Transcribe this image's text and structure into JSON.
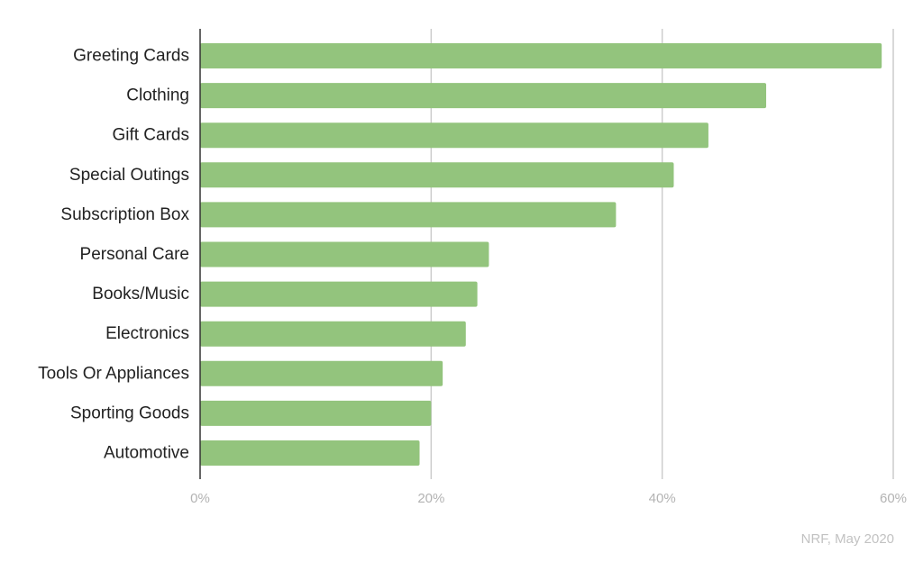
{
  "chart_data": {
    "type": "bar",
    "orientation": "horizontal",
    "categories": [
      "Greeting Cards",
      "Clothing",
      "Gift Cards",
      "Special Outings",
      "Subscription Box",
      "Personal Care",
      "Books/Music",
      "Electronics",
      "Tools Or Appliances",
      "Sporting Goods",
      "Automotive"
    ],
    "values": [
      59,
      49,
      44,
      41,
      36,
      25,
      24,
      23,
      21,
      20,
      19
    ],
    "xlim": [
      0,
      60
    ],
    "x_ticks": [
      0,
      20,
      40,
      60
    ],
    "x_tick_labels": [
      "0%",
      "20%",
      "40%",
      "60%"
    ],
    "grid": true,
    "bar_color": "#93c47d",
    "title": "",
    "xlabel": "",
    "ylabel": ""
  },
  "source": "NRF, May 2020"
}
